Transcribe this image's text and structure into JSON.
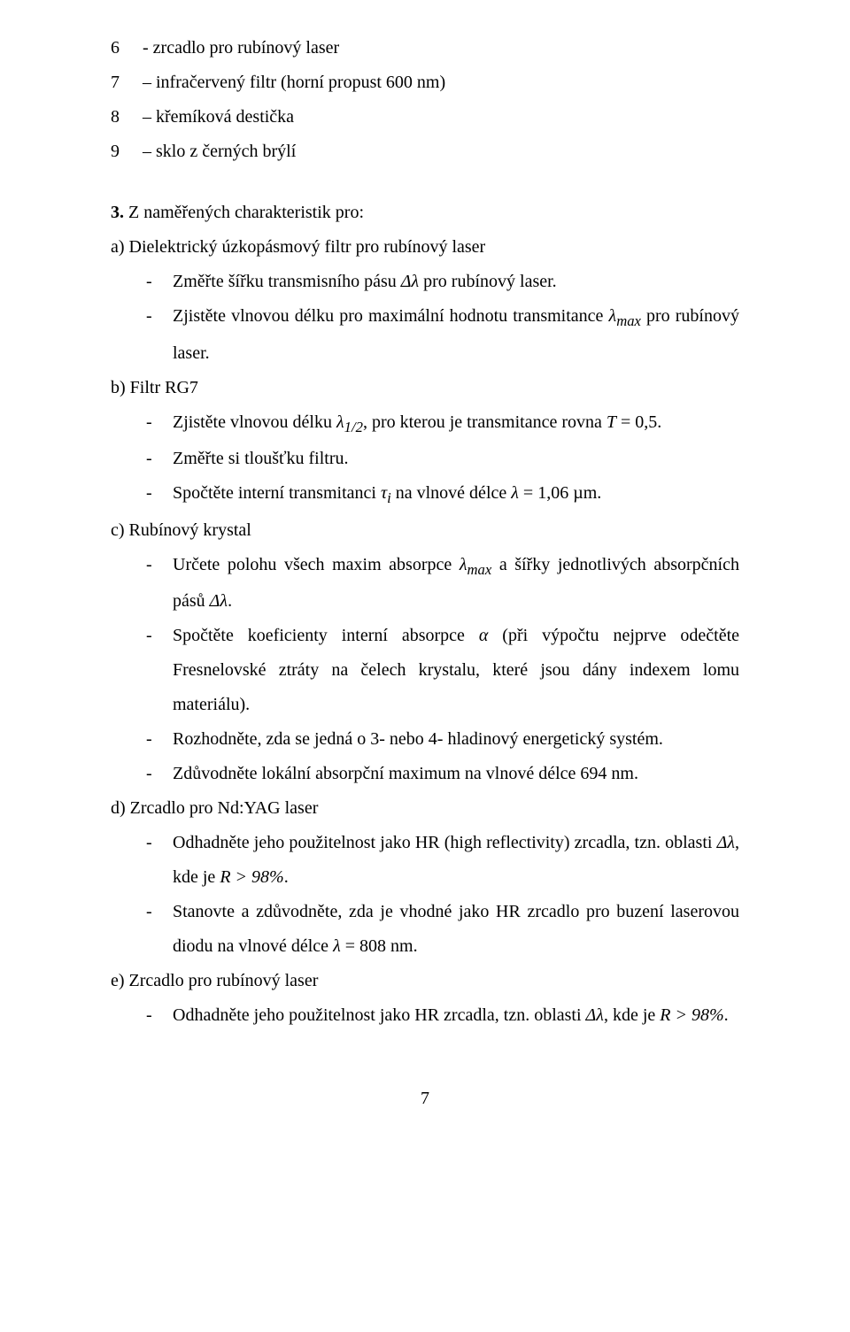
{
  "items": [
    {
      "num": "6",
      "text": "- zrcadlo pro rubínový laser"
    },
    {
      "num": "7",
      "text": "– infračervený filtr (horní propust 600 nm)"
    },
    {
      "num": "8",
      "text": "– křemíková destička"
    },
    {
      "num": "9",
      "text": "– sklo z černých brýlí"
    }
  ],
  "q3": {
    "heading_html": "<b>3.</b> Z naměřených charakteristik pro:",
    "a": {
      "label": "a) Dielektrický úzkopásmový filtr pro rubínový laser",
      "dashes": [
        "Změřte šířku transmisního pásu <i>Δλ</i> pro rubínový laser.",
        "Zjistěte vlnovou délku pro maximální hodnotu transmitance <i>λ<sub>max</sub></i> pro rubínový laser."
      ]
    },
    "b": {
      "label": "b) Filtr RG7",
      "dashes": [
        "Zjistěte vlnovou délku <i>λ<sub>1/2</sub></i>, pro kterou je transmitance rovna <i>T</i> = 0,5.",
        "Změřte si tloušťku filtru.",
        "Spočtěte interní transmitanci <i>τ<sub>i</sub></i> na vlnové délce <i>λ</i> = 1,06 µm."
      ]
    },
    "c": {
      "label": "c) Rubínový krystal",
      "dashes": [
        "Určete polohu všech maxim absorpce <i>λ<sub>max</sub></i> a šířky jednotlivých absorpčních pásů <i>Δλ</i>.",
        "Spočtěte koeficienty interní absorpce <i>α</i> (při výpočtu nejprve odečtěte Fresnelovské ztráty na čelech krystalu, které jsou dány indexem lomu materiálu).",
        "Rozhodněte, zda se jedná o 3- nebo 4- hladinový energetický systém.",
        "Zdůvodněte lokální absorpční maximum na vlnové délce 694 nm."
      ]
    },
    "d": {
      "label": "d) Zrcadlo pro Nd:YAG laser",
      "dashes": [
        "Odhadněte jeho použitelnost jako HR (high reflectivity) zrcadla, tzn. oblasti <i>Δλ</i>, kde je <i>R &gt; 98%</i>.",
        "Stanovte a zdůvodněte, zda je vhodné jako HR zrcadlo pro buzení laserovou diodu na vlnové délce <i>λ</i> = 808 nm."
      ]
    },
    "e": {
      "label": "e) Zrcadlo pro rubínový laser",
      "dashes": [
        "Odhadněte jeho použitelnost jako HR zrcadla, tzn. oblasti <i>Δλ</i>, kde je <i>R &gt; 98%</i>."
      ]
    }
  },
  "page_number": "7"
}
